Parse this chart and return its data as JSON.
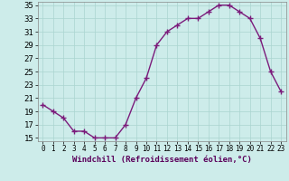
{
  "x": [
    0,
    1,
    2,
    3,
    4,
    5,
    6,
    7,
    8,
    9,
    10,
    11,
    12,
    13,
    14,
    15,
    16,
    17,
    18,
    19,
    20,
    21,
    22,
    23
  ],
  "y": [
    20,
    19,
    18,
    16,
    16,
    15,
    15,
    15,
    17,
    21,
    24,
    29,
    31,
    32,
    33,
    33,
    34,
    35,
    35,
    34,
    33,
    30,
    25,
    22
  ],
  "line_color": "#7B1B7B",
  "marker": "+",
  "marker_size": 4,
  "marker_color": "#7B1B7B",
  "background_color": "#cdecea",
  "grid_color": "#aad4d0",
  "xlabel": "Windchill (Refroidissement éolien,°C)",
  "xlabel_fontsize": 6.5,
  "xlim_min": -0.5,
  "xlim_max": 23.5,
  "ylim_min": 14.5,
  "ylim_max": 35.5,
  "yticks": [
    15,
    17,
    19,
    21,
    23,
    25,
    27,
    29,
    31,
    33,
    35
  ],
  "xticks": [
    0,
    1,
    2,
    3,
    4,
    5,
    6,
    7,
    8,
    9,
    10,
    11,
    12,
    13,
    14,
    15,
    16,
    17,
    18,
    19,
    20,
    21,
    22,
    23
  ],
  "ytick_fontsize": 6.5,
  "xtick_fontsize": 5.5,
  "line_width": 1.0,
  "spine_color": "#888888"
}
